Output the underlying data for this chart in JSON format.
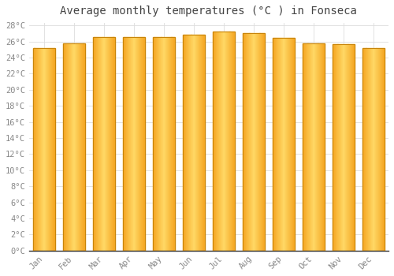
{
  "title": "Average monthly temperatures (°C ) in Fonseca",
  "months": [
    "Jan",
    "Feb",
    "Mar",
    "Apr",
    "May",
    "Jun",
    "Jul",
    "Aug",
    "Sep",
    "Oct",
    "Nov",
    "Dec"
  ],
  "values": [
    25.2,
    25.8,
    26.5,
    26.5,
    26.5,
    26.8,
    27.2,
    27.0,
    26.4,
    25.8,
    25.7,
    25.2
  ],
  "bar_color_center": "#FFD966",
  "bar_color_edge": "#F5A623",
  "bar_outline_color": "#C8850A",
  "ylim_min": 0,
  "ylim_max": 28,
  "ytick_step": 2,
  "background_color": "#FFFFFF",
  "grid_color": "#DDDDDD",
  "title_fontsize": 10,
  "tick_fontsize": 7.5,
  "title_color": "#444444",
  "tick_color": "#888888"
}
